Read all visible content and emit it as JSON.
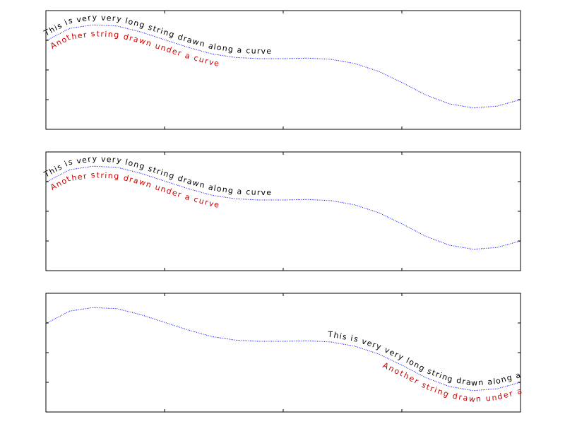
{
  "chart_data": [
    {
      "type": "line",
      "x": [
        0,
        0.05,
        0.1,
        0.15,
        0.2,
        0.25,
        0.3,
        0.35,
        0.4,
        0.45,
        0.5,
        0.55,
        0.6,
        0.65,
        0.7,
        0.75,
        0.8,
        0.85,
        0.9,
        0.95,
        1
      ],
      "series": [
        {
          "color": "#0000ff",
          "values": [
            0.49,
            0.7,
            0.76,
            0.74,
            0.64,
            0.51,
            0.38,
            0.27,
            0.21,
            0.19,
            0.19,
            0.2,
            0.18,
            0.11,
            -0.02,
            -0.21,
            -0.42,
            -0.57,
            -0.64,
            -0.61,
            -0.5
          ]
        }
      ],
      "xlim": [
        0,
        1
      ],
      "ylim": [
        -1,
        1
      ],
      "xticks": [
        0.25,
        0.5,
        0.75
      ],
      "yticks": [
        -0.5,
        0,
        0.5
      ],
      "annotations": [
        {
          "text": "This is very very long string drawn along a curve",
          "color": "#000000"
        },
        {
          "text": "Another string drawn under a curve",
          "color": "#cc0000"
        }
      ]
    },
    {
      "type": "line",
      "x": [
        0,
        0.05,
        0.1,
        0.15,
        0.2,
        0.25,
        0.3,
        0.35,
        0.4,
        0.45,
        0.5,
        0.55,
        0.6,
        0.65,
        0.7,
        0.75,
        0.8,
        0.85,
        0.9,
        0.95,
        1
      ],
      "series": [
        {
          "color": "#0000ff",
          "values": [
            0.49,
            0.7,
            0.76,
            0.74,
            0.64,
            0.51,
            0.38,
            0.27,
            0.21,
            0.19,
            0.19,
            0.2,
            0.18,
            0.11,
            -0.02,
            -0.21,
            -0.42,
            -0.57,
            -0.64,
            -0.61,
            -0.5
          ]
        }
      ],
      "xlim": [
        0,
        1
      ],
      "ylim": [
        -1,
        1
      ],
      "xticks": [
        0.25,
        0.5,
        0.75
      ],
      "yticks": [
        -0.5,
        0,
        0.5
      ],
      "annotations": [
        {
          "text": "This is very very long string drawn along a curve",
          "color": "#000000"
        },
        {
          "text": "Another string drawn under a curve",
          "color": "#cc0000"
        }
      ]
    },
    {
      "type": "line",
      "x": [
        0,
        0.05,
        0.1,
        0.15,
        0.2,
        0.25,
        0.3,
        0.35,
        0.4,
        0.45,
        0.5,
        0.55,
        0.6,
        0.65,
        0.7,
        0.75,
        0.8,
        0.85,
        0.9,
        0.95,
        1
      ],
      "series": [
        {
          "color": "#0000ff",
          "values": [
            0.49,
            0.7,
            0.76,
            0.74,
            0.64,
            0.51,
            0.38,
            0.27,
            0.21,
            0.19,
            0.19,
            0.2,
            0.18,
            0.11,
            -0.02,
            -0.21,
            -0.42,
            -0.57,
            -0.64,
            -0.61,
            -0.5
          ]
        }
      ],
      "xlim": [
        0,
        1
      ],
      "ylim": [
        -1,
        1
      ],
      "xticks": [
        0.25,
        0.5,
        0.75
      ],
      "yticks": [
        -0.5,
        0,
        0.5
      ],
      "annotations": [
        {
          "text": "This is very very long string drawn along a curve",
          "color": "#000000"
        },
        {
          "text": "Another string drawn under a curve",
          "color": "#cc0000"
        }
      ]
    }
  ]
}
